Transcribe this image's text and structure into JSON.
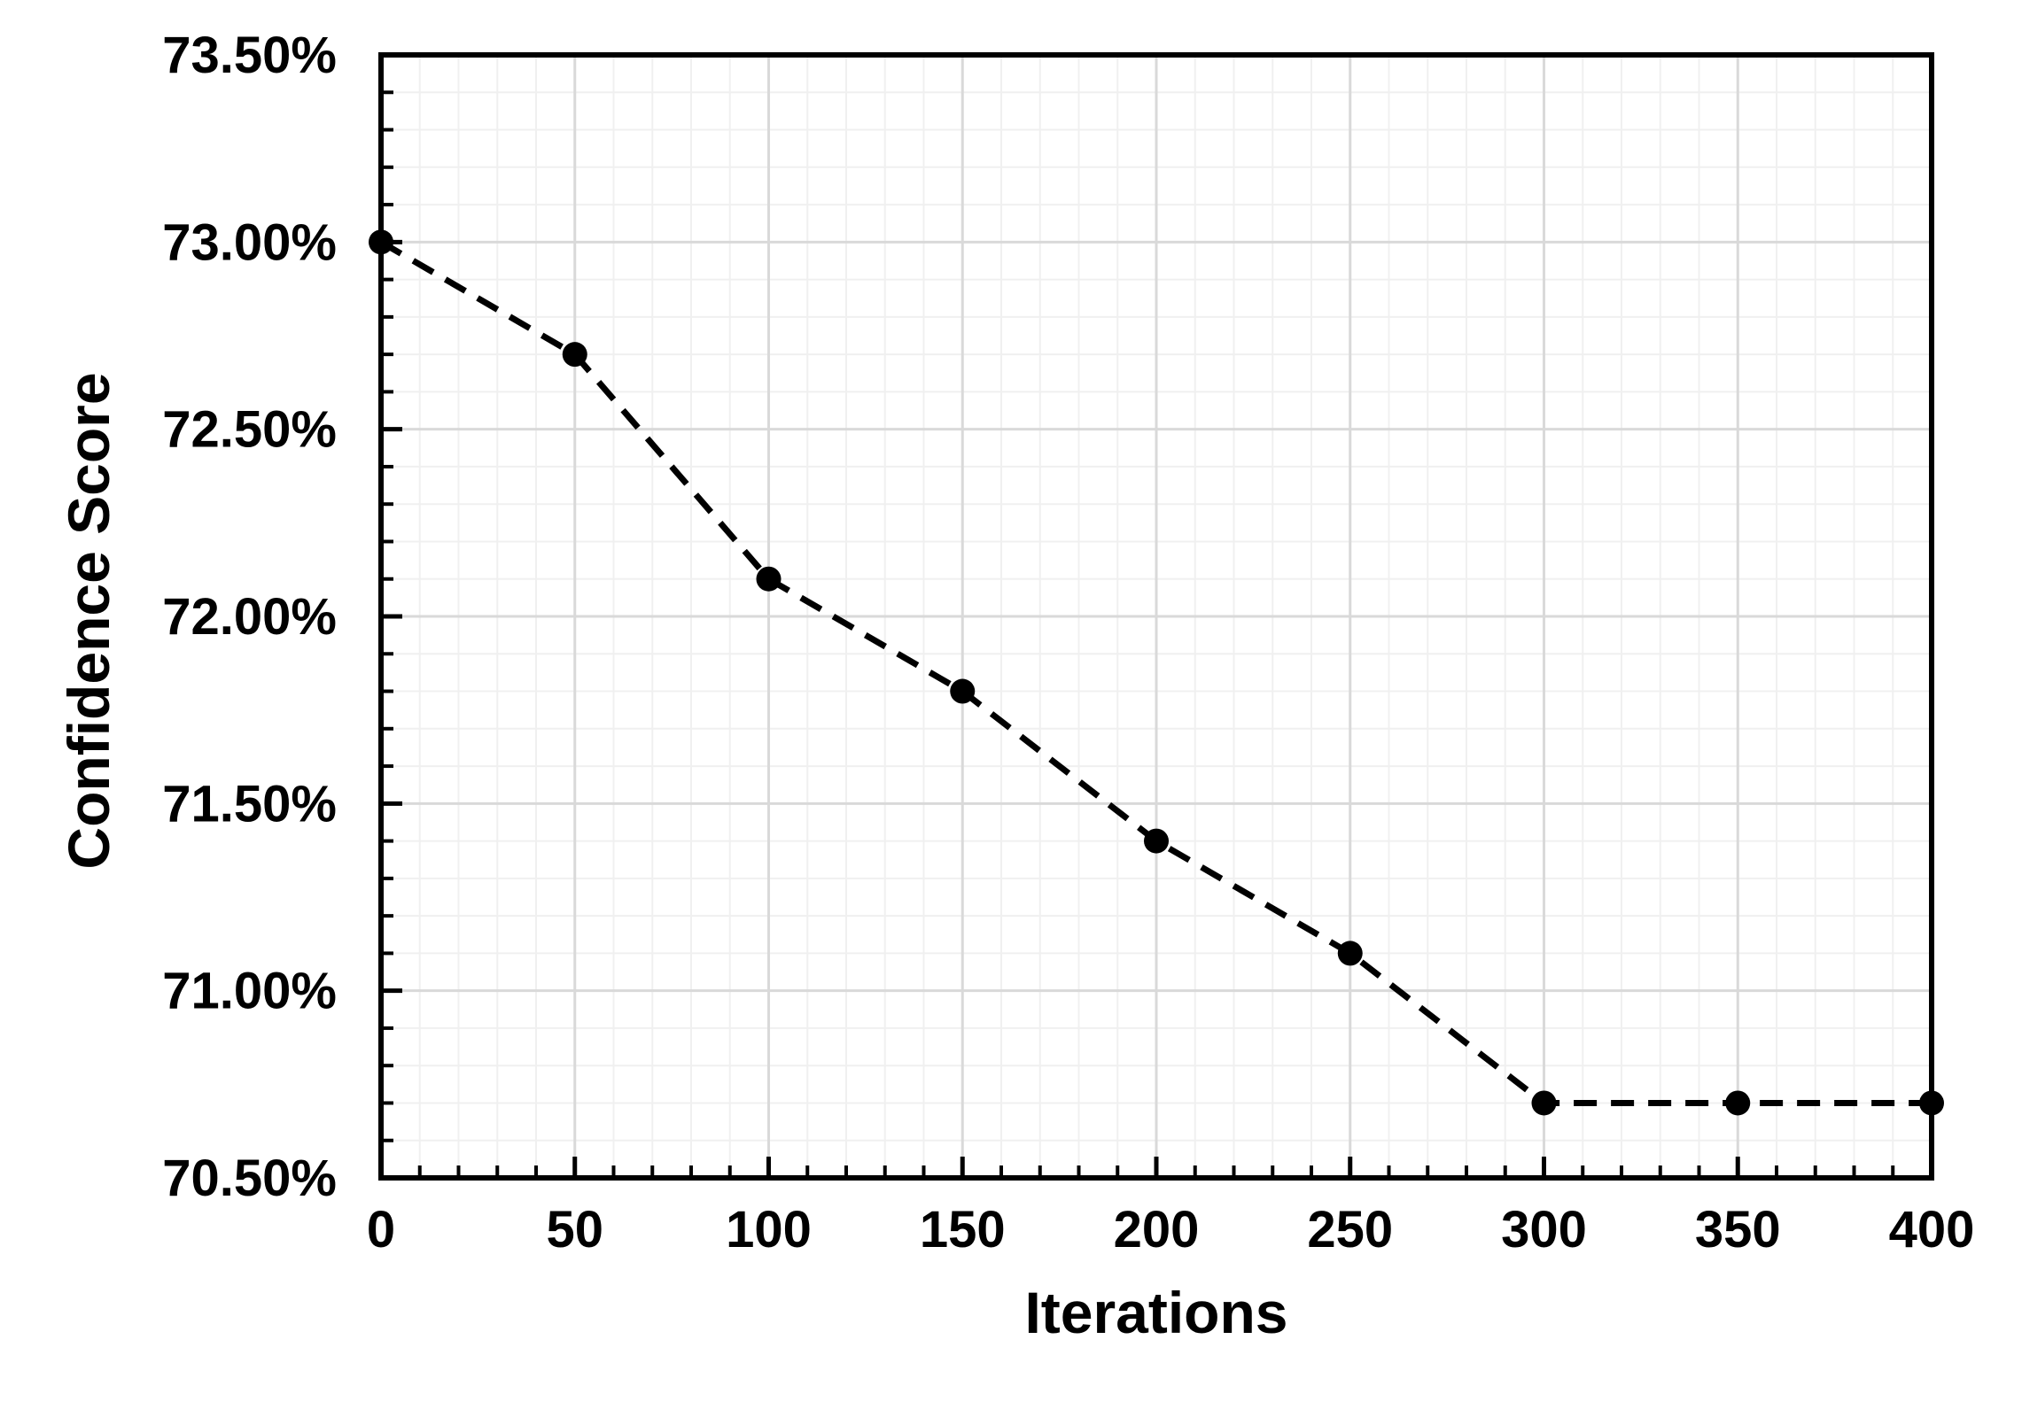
{
  "chart_data": {
    "type": "line",
    "title": "",
    "xlabel": "Iterations",
    "ylabel": "Confidence Score",
    "x": [
      0,
      50,
      100,
      150,
      200,
      250,
      300,
      350,
      400
    ],
    "series": [
      {
        "values": [
          73.0,
          72.7,
          72.1,
          71.8,
          71.4,
          71.1,
          70.7,
          70.7,
          70.7
        ],
        "line_style": "dashed",
        "marker": "circle",
        "color": "#000000"
      }
    ],
    "xlim": [
      0,
      400
    ],
    "ylim": [
      70.5,
      73.5
    ],
    "x_ticks": [
      0,
      50,
      100,
      150,
      200,
      250,
      300,
      350,
      400
    ],
    "x_tick_labels": [
      "0",
      "50",
      "100",
      "150",
      "200",
      "250",
      "300",
      "350",
      "400"
    ],
    "y_ticks": [
      70.5,
      71.0,
      71.5,
      72.0,
      72.5,
      73.0,
      73.5
    ],
    "y_tick_labels": [
      "70.50%",
      "71.00%",
      "71.50%",
      "72.00%",
      "72.50%",
      "73.00%",
      "73.50%"
    ],
    "x_minor_step": 10,
    "y_minor_step": 0.1,
    "grid": true,
    "legend": "none",
    "colors": {
      "axis": "#000000",
      "major_grid": "#d9d9d9",
      "minor_grid": "#f0f0f0",
      "line": "#000000"
    }
  }
}
